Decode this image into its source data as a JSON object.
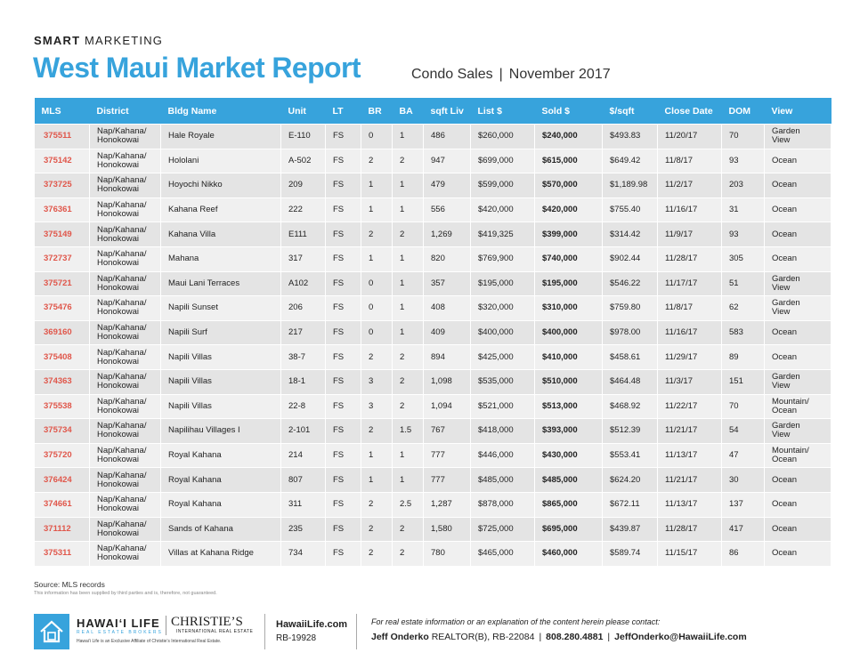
{
  "header": {
    "kicker_bold": "SMART",
    "kicker_rest": "MARKETING",
    "title": "West Maui Market Report",
    "subtitle_left": "Condo Sales",
    "subtitle_sep": "|",
    "subtitle_right": "November 2017"
  },
  "table": {
    "columns": [
      "MLS",
      "District",
      "Bldg Name",
      "Unit",
      "LT",
      "BR",
      "BA",
      "sqft Liv",
      "List $",
      "Sold $",
      "$/sqft",
      "Close Date",
      "DOM",
      "View"
    ],
    "rows": [
      [
        "375511",
        "Nap/Kahana/ Honokowai",
        "Hale Royale",
        "E-110",
        "FS",
        "0",
        "1",
        "486",
        "$260,000",
        "$240,000",
        "$493.83",
        "11/20/17",
        "70",
        "Garden View"
      ],
      [
        "375142",
        "Nap/Kahana/ Honokowai",
        "Hololani",
        "A-502",
        "FS",
        "2",
        "2",
        "947",
        "$699,000",
        "$615,000",
        "$649.42",
        "11/8/17",
        "93",
        "Ocean"
      ],
      [
        "373725",
        "Nap/Kahana/ Honokowai",
        "Hoyochi Nikko",
        "209",
        "FS",
        "1",
        "1",
        "479",
        "$599,000",
        "$570,000",
        "$1,189.98",
        "11/2/17",
        "203",
        "Ocean"
      ],
      [
        "376361",
        "Nap/Kahana/ Honokowai",
        "Kahana Reef",
        "222",
        "FS",
        "1",
        "1",
        "556",
        "$420,000",
        "$420,000",
        "$755.40",
        "11/16/17",
        "31",
        "Ocean"
      ],
      [
        "375149",
        "Nap/Kahana/ Honokowai",
        "Kahana Villa",
        "E111",
        "FS",
        "2",
        "2",
        "1,269",
        "$419,325",
        "$399,000",
        "$314.42",
        "11/9/17",
        "93",
        "Ocean"
      ],
      [
        "372737",
        "Nap/Kahana/ Honokowai",
        "Mahana",
        "317",
        "FS",
        "1",
        "1",
        "820",
        "$769,900",
        "$740,000",
        "$902.44",
        "11/28/17",
        "305",
        "Ocean"
      ],
      [
        "375721",
        "Nap/Kahana/ Honokowai",
        "Maui Lani Terraces",
        "A102",
        "FS",
        "0",
        "1",
        "357",
        "$195,000",
        "$195,000",
        "$546.22",
        "11/17/17",
        "51",
        "Garden View"
      ],
      [
        "375476",
        "Nap/Kahana/ Honokowai",
        "Napili Sunset",
        "206",
        "FS",
        "0",
        "1",
        "408",
        "$320,000",
        "$310,000",
        "$759.80",
        "11/8/17",
        "62",
        "Garden View"
      ],
      [
        "369160",
        "Nap/Kahana/ Honokowai",
        "Napili Surf",
        "217",
        "FS",
        "0",
        "1",
        "409",
        "$400,000",
        "$400,000",
        "$978.00",
        "11/16/17",
        "583",
        "Ocean"
      ],
      [
        "375408",
        "Nap/Kahana/ Honokowai",
        "Napili Villas",
        "38-7",
        "FS",
        "2",
        "2",
        "894",
        "$425,000",
        "$410,000",
        "$458.61",
        "11/29/17",
        "89",
        "Ocean"
      ],
      [
        "374363",
        "Nap/Kahana/ Honokowai",
        "Napili Villas",
        "18-1",
        "FS",
        "3",
        "2",
        "1,098",
        "$535,000",
        "$510,000",
        "$464.48",
        "11/3/17",
        "151",
        "Garden View"
      ],
      [
        "375538",
        "Nap/Kahana/ Honokowai",
        "Napili Villas",
        "22-8",
        "FS",
        "3",
        "2",
        "1,094",
        "$521,000",
        "$513,000",
        "$468.92",
        "11/22/17",
        "70",
        "Mountain/ Ocean"
      ],
      [
        "375734",
        "Nap/Kahana/ Honokowai",
        "Napilihau Villages I",
        "2-101",
        "FS",
        "2",
        "1.5",
        "767",
        "$418,000",
        "$393,000",
        "$512.39",
        "11/21/17",
        "54",
        "Garden View"
      ],
      [
        "375720",
        "Nap/Kahana/ Honokowai",
        "Royal Kahana",
        "214",
        "FS",
        "1",
        "1",
        "777",
        "$446,000",
        "$430,000",
        "$553.41",
        "11/13/17",
        "47",
        "Mountain/ Ocean"
      ],
      [
        "376424",
        "Nap/Kahana/ Honokowai",
        "Royal Kahana",
        "807",
        "FS",
        "1",
        "1",
        "777",
        "$485,000",
        "$485,000",
        "$624.20",
        "11/21/17",
        "30",
        "Ocean"
      ],
      [
        "374661",
        "Nap/Kahana/ Honokowai",
        "Royal Kahana",
        "311",
        "FS",
        "2",
        "2.5",
        "1,287",
        "$878,000",
        "$865,000",
        "$672.11",
        "11/13/17",
        "137",
        "Ocean"
      ],
      [
        "371112",
        "Nap/Kahana/ Honokowai",
        "Sands of Kahana",
        "235",
        "FS",
        "2",
        "2",
        "1,580",
        "$725,000",
        "$695,000",
        "$439.87",
        "11/28/17",
        "417",
        "Ocean"
      ],
      [
        "375311",
        "Nap/Kahana/ Honokowai",
        "Villas at Kahana Ridge",
        "734",
        "FS",
        "2",
        "2",
        "780",
        "$465,000",
        "$460,000",
        "$589.74",
        "11/15/17",
        "86",
        "Ocean"
      ]
    ]
  },
  "footer": {
    "source": "Source: MLS records",
    "disclaimer": "This information has been supplied by third parties and is, therefore, not guaranteed.",
    "brand": "HAWAI‘I LIFE",
    "brand_sub": "REAL ESTATE BROKERS",
    "christies": "CHRISTIE’S",
    "christies_sub": "INTERNATIONAL REAL ESTATE",
    "affiliate": "Hawai‘i Life is an Exclusive Affiliate of Christie’s International Real Estate.",
    "site": "HawaiiLife.com",
    "rb": "RB-19928",
    "contact_note": "For real estate information or an explanation of the content herein please contact:",
    "agent_name": "Jeff Onderko",
    "agent_license": "REALTOR(B), RB-22084",
    "pipe": "|",
    "phone": "808.280.4881",
    "email": "JeffOnderko@HawaiiLife.com"
  }
}
